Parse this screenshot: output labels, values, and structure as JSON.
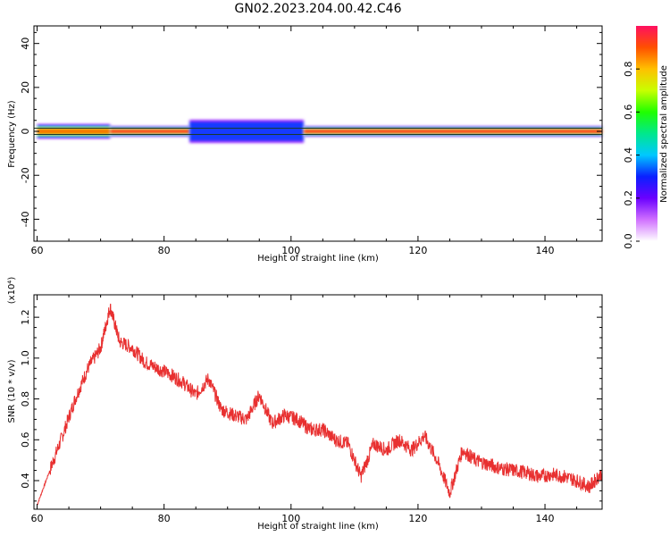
{
  "title": "GN02.2023.204.00.42.C46",
  "chart_data": [
    {
      "type": "heatmap",
      "xlabel": "Height of straight line (km)",
      "ylabel": "Frequency (Hz)",
      "xlim": [
        59.5,
        149
      ],
      "ylim": [
        -50,
        48
      ],
      "xticks": [
        60,
        80,
        100,
        120,
        140
      ],
      "yticks": [
        -40,
        -20,
        0,
        20,
        40
      ],
      "grid": false,
      "band": {
        "center_hz": 0,
        "segments": [
          {
            "x0": 60,
            "x1": 71.5,
            "half_width_hz": 3,
            "peak": 0.9
          },
          {
            "x0": 71.5,
            "x1": 84,
            "half_width_hz": 2,
            "peak": 0.95
          },
          {
            "x0": 84,
            "x1": 102,
            "half_width_hz": 5,
            "peak": 0.35
          },
          {
            "x0": 102,
            "x1": 149,
            "half_width_hz": 2,
            "peak": 0.95
          }
        ]
      },
      "colorbar": {
        "label": "Normalized spectral amplitude",
        "range": [
          0,
          1
        ],
        "ticks": [
          "0.0",
          "0.2",
          "0.4",
          "0.6",
          "0.8"
        ],
        "colors": [
          "#ffffff",
          "#d070ff",
          "#6a00ff",
          "#0a20ff",
          "#00c8ff",
          "#00e88c",
          "#20ff00",
          "#c8ff00",
          "#ffc000",
          "#ff5000",
          "#ff1060"
        ]
      }
    },
    {
      "type": "line",
      "xlabel": "Height of straight line (km)",
      "ylabel": "SNR (10 * v/v)",
      "y_multiplier_label": "(x10⁴)",
      "xlim": [
        59.5,
        149
      ],
      "ylim": [
        0.26,
        1.31
      ],
      "xticks": [
        60,
        80,
        100,
        120,
        140
      ],
      "yticks": [
        "0.4",
        "0.6",
        "0.8",
        "1.0",
        "1.2"
      ],
      "color": "#e83030",
      "x": [
        60,
        62,
        64,
        66,
        68,
        70,
        71.5,
        73,
        75,
        77,
        79,
        81,
        83,
        85,
        87,
        89,
        91,
        93,
        95,
        97,
        99,
        101,
        103,
        105,
        107,
        109,
        111,
        113,
        115,
        117,
        119,
        121,
        123,
        125,
        127,
        129,
        131,
        133,
        135,
        137,
        139,
        141,
        143,
        145,
        147,
        149
      ],
      "y": [
        0.28,
        0.45,
        0.62,
        0.8,
        0.95,
        1.05,
        1.25,
        1.08,
        1.05,
        0.98,
        0.95,
        0.92,
        0.88,
        0.82,
        0.9,
        0.75,
        0.72,
        0.7,
        0.82,
        0.68,
        0.72,
        0.7,
        0.65,
        0.65,
        0.6,
        0.58,
        0.42,
        0.58,
        0.55,
        0.6,
        0.55,
        0.62,
        0.5,
        0.34,
        0.55,
        0.5,
        0.48,
        0.46,
        0.45,
        0.44,
        0.42,
        0.43,
        0.42,
        0.4,
        0.37,
        0.44
      ]
    }
  ]
}
